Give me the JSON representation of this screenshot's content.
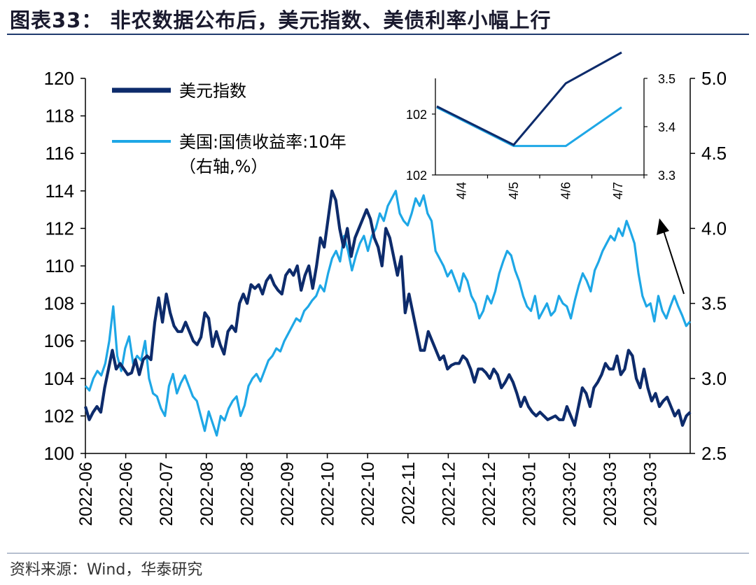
{
  "title": "图表33：  非农数据公布后，美元指数、美债利率小幅上行",
  "source": "资料来源：Wind，华泰研究",
  "colors": {
    "dxy": "#0d2b6b",
    "us10y": "#1ea7e6",
    "axis": "#000000",
    "rule": "#1f3a6e"
  },
  "chart_data": [
    {
      "type": "line",
      "x_tick_labels": [
        "2022-06",
        "2022-06",
        "2022-07",
        "2022-08",
        "2022-08",
        "2022-09",
        "2022-10",
        "2022-10",
        "2022-11",
        "2022-12",
        "2022-12",
        "2023-01",
        "2023-02",
        "2023-03",
        "2023-03"
      ],
      "legend": [
        {
          "name": "美元指数",
          "color": "#0d2b6b"
        },
        {
          "name": "美国:国债收益率:10年",
          "name_line2": "（右轴,%）",
          "color": "#1ea7e6"
        }
      ],
      "y_left": {
        "min": 100,
        "max": 120,
        "ticks": [
          "100",
          "102",
          "104",
          "106",
          "108",
          "110",
          "112",
          "114",
          "116",
          "118",
          "120"
        ]
      },
      "y_right": {
        "min": 2.5,
        "max": 5.0,
        "ticks": [
          "2.5",
          "3.0",
          "3.5",
          "4.0",
          "4.5",
          "5.0"
        ]
      },
      "grid": false,
      "series": [
        {
          "name": "美元指数",
          "axis": "left",
          "values": [
            102.5,
            101.8,
            102.2,
            102.5,
            102.2,
            103.5,
            104.5,
            105.5,
            104.5,
            104.8,
            104.5,
            104.2,
            104.3,
            105.0,
            104.2,
            105.0,
            105.2,
            105.0,
            107.0,
            108.3,
            107.0,
            108.5,
            107.5,
            106.8,
            106.5,
            106.5,
            107.0,
            106.5,
            106.0,
            105.8,
            106.2,
            107.5,
            107.2,
            105.7,
            106.5,
            105.8,
            105.3,
            106.5,
            106.8,
            106.5,
            108.0,
            108.5,
            108.0,
            109.0,
            108.8,
            109.0,
            108.5,
            109.2,
            109.5,
            109.0,
            108.7,
            108.5,
            109.5,
            109.8,
            109.5,
            110.0,
            108.7,
            109.5,
            110.0,
            108.8,
            110.0,
            111.5,
            111.0,
            112.5,
            114.0,
            113.5,
            112.0,
            111.0,
            112.0,
            110.5,
            111.5,
            112.0,
            112.5,
            113.0,
            112.5,
            111.5,
            111.0,
            110.0,
            112.0,
            111.5,
            110.5,
            109.5,
            110.5,
            107.5,
            108.5,
            107.5,
            106.5,
            105.5,
            105.5,
            106.5,
            106.0,
            105.5,
            105.0,
            105.2,
            104.5,
            104.7,
            104.8,
            104.8,
            105.2,
            105.0,
            104.5,
            103.8,
            104.5,
            104.5,
            104.3,
            104.0,
            104.5,
            104.2,
            103.5,
            103.8,
            104.2,
            103.8,
            103.2,
            102.5,
            103.0,
            102.5,
            102.2,
            102.0,
            102.2,
            102.0,
            101.8,
            101.9,
            102.0,
            101.8,
            101.8,
            102.5,
            102.0,
            101.5,
            102.5,
            103.5,
            103.2,
            102.5,
            103.5,
            103.8,
            104.2,
            104.8,
            104.5,
            104.5,
            105.2,
            104.2,
            104.5,
            105.5,
            105.2,
            104.0,
            103.5,
            104.5,
            103.5,
            102.8,
            103.2,
            102.5,
            102.8,
            103.0,
            102.5,
            102.0,
            102.3,
            101.5,
            102.0,
            102.2
          ]
        },
        {
          "name": "美国:国债收益率:10年",
          "axis": "right",
          "values": [
            2.95,
            2.92,
            3.0,
            3.05,
            3.02,
            3.1,
            3.25,
            3.48,
            3.15,
            3.05,
            3.2,
            3.28,
            3.1,
            3.15,
            3.12,
            3.25,
            3.0,
            2.9,
            2.88,
            2.8,
            2.75,
            2.95,
            3.03,
            2.9,
            2.97,
            3.02,
            2.95,
            2.88,
            2.85,
            2.75,
            2.65,
            2.78,
            2.7,
            2.62,
            2.75,
            2.72,
            2.8,
            2.85,
            2.88,
            2.75,
            2.82,
            2.95,
            3.0,
            3.03,
            2.98,
            3.05,
            3.12,
            3.15,
            3.2,
            3.18,
            3.25,
            3.3,
            3.35,
            3.4,
            3.38,
            3.45,
            3.48,
            3.52,
            3.55,
            3.62,
            3.58,
            3.7,
            3.8,
            3.85,
            3.78,
            3.95,
            3.85,
            3.72,
            3.82,
            3.9,
            3.95,
            3.85,
            3.95,
            4.0,
            4.1,
            4.05,
            4.15,
            4.2,
            4.25,
            4.1,
            4.05,
            4.02,
            4.1,
            4.2,
            4.15,
            4.22,
            4.1,
            4.05,
            3.85,
            3.8,
            3.75,
            3.68,
            3.72,
            3.65,
            3.58,
            3.7,
            3.65,
            3.55,
            3.5,
            3.4,
            3.45,
            3.55,
            3.5,
            3.58,
            3.7,
            3.78,
            3.85,
            3.82,
            3.72,
            3.65,
            3.55,
            3.48,
            3.45,
            3.55,
            3.4,
            3.45,
            3.5,
            3.42,
            3.45,
            3.55,
            3.5,
            3.48,
            3.4,
            3.52,
            3.62,
            3.7,
            3.65,
            3.58,
            3.72,
            3.78,
            3.85,
            3.9,
            3.95,
            3.92,
            4.0,
            3.95,
            4.05,
            3.98,
            3.9,
            3.7,
            3.55,
            3.48,
            3.5,
            3.38,
            3.55,
            3.45,
            3.4,
            3.48,
            3.55,
            3.48,
            3.42,
            3.35,
            3.38
          ]
        }
      ]
    },
    {
      "type": "line",
      "categories": [
        "4/4",
        "4/5",
        "4/6",
        "4/7"
      ],
      "y_left": {
        "ticks": [
          "102",
          "102"
        ]
      },
      "y_right": {
        "min": 3.3,
        "max": 3.5,
        "ticks": [
          "3.3",
          "3.4",
          "3.5"
        ]
      },
      "series": [
        {
          "name": "美元指数",
          "axis": "left",
          "values": [
            102.1,
            101.6,
            102.4,
            102.8
          ]
        },
        {
          "name": "美国:国债收益率:10年",
          "axis": "right",
          "values": [
            3.44,
            3.36,
            3.36,
            3.44
          ]
        }
      ]
    }
  ]
}
